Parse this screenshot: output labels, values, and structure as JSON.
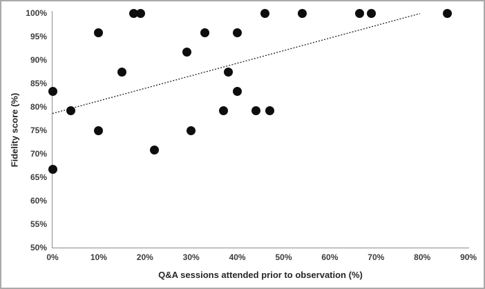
{
  "chart_data": {
    "type": "scatter",
    "title": "",
    "xlabel": "Q&A sessions attended prior to observation (%)",
    "ylabel": "Fidelity score (%)",
    "xlim": [
      0,
      90
    ],
    "ylim": [
      50,
      100
    ],
    "x_tick_values": [
      0,
      10,
      20,
      30,
      40,
      50,
      60,
      70,
      80,
      90
    ],
    "x_tick_labels": [
      "0%",
      "10%",
      "20%",
      "30%",
      "40%",
      "50%",
      "60%",
      "70%",
      "80%",
      "90%"
    ],
    "y_tick_values": [
      100,
      95,
      90,
      85,
      80,
      75,
      70,
      65,
      60,
      55,
      50
    ],
    "y_tick_labels": [
      "100%",
      "95%",
      "90%",
      "85%",
      "80%",
      "75%",
      "70%",
      "65%",
      "60%",
      "55%",
      "50%"
    ],
    "grid": false,
    "legend": "none",
    "marker_color": "#0d0d0d",
    "points": [
      {
        "x": 0,
        "y": 83.3
      },
      {
        "x": 0,
        "y": 66.7
      },
      {
        "x": 4,
        "y": 79.2
      },
      {
        "x": 10,
        "y": 95.8
      },
      {
        "x": 10,
        "y": 75
      },
      {
        "x": 15,
        "y": 87.5
      },
      {
        "x": 17.5,
        "y": 100
      },
      {
        "x": 19,
        "y": 100
      },
      {
        "x": 22,
        "y": 70.8
      },
      {
        "x": 29,
        "y": 91.7
      },
      {
        "x": 30,
        "y": 75
      },
      {
        "x": 33,
        "y": 95.8
      },
      {
        "x": 37,
        "y": 79.2
      },
      {
        "x": 38,
        "y": 87.5
      },
      {
        "x": 40,
        "y": 95.8
      },
      {
        "x": 40,
        "y": 83.3
      },
      {
        "x": 44,
        "y": 79.2
      },
      {
        "x": 46,
        "y": 100
      },
      {
        "x": 47,
        "y": 79.2
      },
      {
        "x": 54,
        "y": 100
      },
      {
        "x": 66.5,
        "y": 100
      },
      {
        "x": 69,
        "y": 100
      },
      {
        "x": 85.5,
        "y": 100
      }
    ],
    "trendline": {
      "style": "dotted",
      "color": "#1f1f1f",
      "x1": 0,
      "y1": 78.6,
      "x2": 79.5,
      "y2": 99.9
    }
  }
}
